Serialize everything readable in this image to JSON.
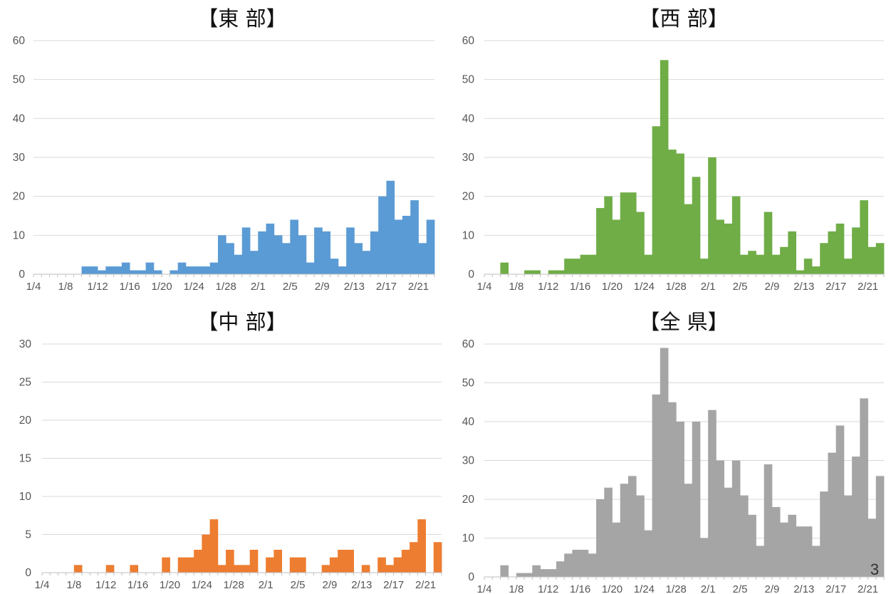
{
  "page_number": "3",
  "chart_data": [
    {
      "type": "bar",
      "title": "【東 部】",
      "color": "#5b9bd5",
      "ylim": [
        0,
        60
      ],
      "yticks": [
        0,
        10,
        20,
        30,
        40,
        50,
        60
      ],
      "start_date": "1/4",
      "x_tick_labels": [
        "1/4",
        "1/8",
        "1/12",
        "1/16",
        "1/20",
        "1/24",
        "1/28",
        "2/1",
        "2/5",
        "2/9",
        "2/13",
        "2/17",
        "2/21"
      ],
      "values": [
        0,
        0,
        0,
        0,
        0,
        0,
        2,
        2,
        1,
        2,
        2,
        3,
        1,
        1,
        3,
        1,
        0,
        1,
        3,
        2,
        2,
        2,
        3,
        10,
        8,
        5,
        12,
        6,
        11,
        13,
        10,
        8,
        14,
        10,
        3,
        12,
        11,
        4,
        2,
        12,
        8,
        6,
        11,
        20,
        24,
        14,
        15,
        19,
        8,
        14
      ]
    },
    {
      "type": "bar",
      "title": "【西 部】",
      "color": "#70ad47",
      "ylim": [
        0,
        60
      ],
      "yticks": [
        0,
        10,
        20,
        30,
        40,
        50,
        60
      ],
      "start_date": "1/4",
      "x_tick_labels": [
        "1/4",
        "1/8",
        "1/12",
        "1/16",
        "1/20",
        "1/24",
        "1/28",
        "2/1",
        "2/5",
        "2/9",
        "2/13",
        "2/17",
        "2/21"
      ],
      "values": [
        0,
        0,
        3,
        0,
        0,
        1,
        1,
        0,
        1,
        1,
        4,
        4,
        5,
        5,
        17,
        20,
        14,
        21,
        21,
        16,
        5,
        38,
        55,
        32,
        31,
        18,
        25,
        4,
        30,
        14,
        13,
        20,
        5,
        6,
        5,
        16,
        5,
        7,
        11,
        1,
        4,
        2,
        8,
        11,
        13,
        4,
        12,
        19,
        7,
        8
      ]
    },
    {
      "type": "bar",
      "title": "【中 部】",
      "color": "#ed7d31",
      "ylim": [
        0,
        30
      ],
      "yticks": [
        0,
        5,
        10,
        15,
        20,
        25,
        30
      ],
      "start_date": "1/4",
      "x_tick_labels": [
        "1/4",
        "1/8",
        "1/12",
        "1/16",
        "1/20",
        "1/24",
        "1/28",
        "2/1",
        "2/5",
        "2/9",
        "2/13",
        "2/17",
        "2/21"
      ],
      "values": [
        0,
        0,
        0,
        0,
        1,
        0,
        0,
        0,
        1,
        0,
        0,
        1,
        0,
        0,
        0,
        2,
        0,
        2,
        2,
        3,
        5,
        7,
        1,
        3,
        1,
        1,
        3,
        0,
        2,
        3,
        0,
        2,
        2,
        0,
        0,
        1,
        2,
        3,
        3,
        0,
        1,
        0,
        2,
        1,
        2,
        3,
        4,
        7,
        0,
        4
      ]
    },
    {
      "type": "bar",
      "title": "【全 県】",
      "color": "#a5a5a5",
      "ylim": [
        0,
        60
      ],
      "yticks": [
        0,
        10,
        20,
        30,
        40,
        50,
        60
      ],
      "start_date": "1/4",
      "x_tick_labels": [
        "1/4",
        "1/8",
        "1/12",
        "1/16",
        "1/20",
        "1/24",
        "1/28",
        "2/1",
        "2/5",
        "2/9",
        "2/13",
        "2/17",
        "2/21"
      ],
      "values": [
        0,
        0,
        3,
        0,
        1,
        1,
        3,
        2,
        2,
        4,
        6,
        7,
        7,
        6,
        20,
        23,
        14,
        24,
        26,
        21,
        12,
        47,
        59,
        45,
        40,
        24,
        40,
        10,
        43,
        30,
        23,
        30,
        21,
        16,
        8,
        29,
        18,
        14,
        16,
        13,
        13,
        8,
        22,
        32,
        39,
        21,
        31,
        46,
        15,
        26
      ]
    }
  ]
}
